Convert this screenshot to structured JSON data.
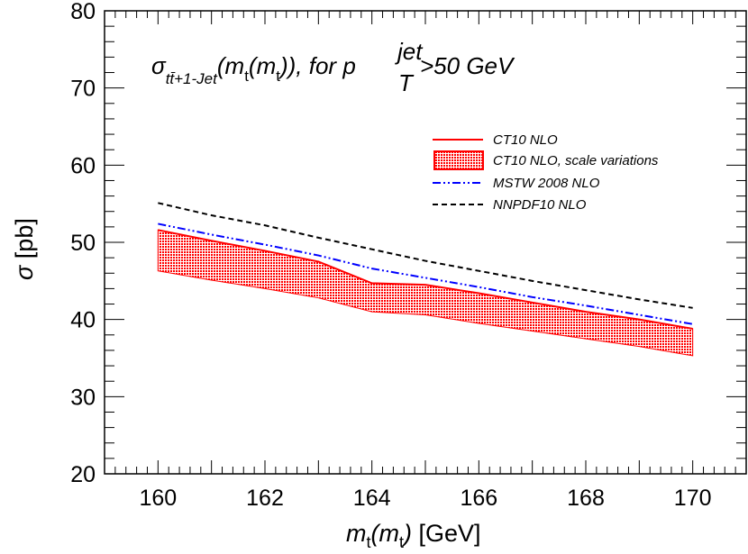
{
  "chart_data": {
    "type": "line",
    "title": {
      "sigma": "σ",
      "sub_main": "tt̄+1-Jet",
      "lparen": "(m",
      "sub_t1": "t",
      "mid": "(m",
      "sub_t2": "t",
      "rest": ")), for p",
      "sup_jet": "jet",
      "sub_T": "T",
      "cut": ">50 GeV"
    },
    "xlabel": {
      "m": "m",
      "sub1": "t",
      "paren": "(m",
      "sub2": "t",
      "close": ")",
      "unit": " [GeV]"
    },
    "ylabel": {
      "sigma": "σ",
      "unit": " [pb]"
    },
    "xlim": [
      159,
      171
    ],
    "ylim": [
      20,
      80
    ],
    "xticks": [
      "160",
      "162",
      "164",
      "166",
      "168",
      "170"
    ],
    "yticks": [
      "20",
      "30",
      "40",
      "50",
      "60",
      "70",
      "80"
    ],
    "x": [
      160,
      161,
      162,
      163,
      164,
      165,
      166,
      167,
      168,
      169,
      170
    ],
    "series": [
      {
        "name": "CT10 NLO",
        "style": "solid",
        "color": "#ff0000",
        "values": [
          51.6,
          50.2,
          48.9,
          47.5,
          44.7,
          44.5,
          43.4,
          42.2,
          41.0,
          40.0,
          38.8
        ]
      },
      {
        "name": "CT10 NLO, scale variations",
        "style": "band",
        "color": "#ff0000",
        "upper": [
          51.6,
          50.2,
          48.9,
          47.5,
          44.7,
          44.5,
          43.4,
          42.2,
          41.0,
          40.0,
          38.8
        ],
        "lower": [
          46.3,
          45.1,
          44.0,
          42.8,
          41.0,
          40.6,
          39.5,
          38.5,
          37.5,
          36.5,
          35.3
        ]
      },
      {
        "name": "MSTW 2008 NLO",
        "style": "dashdotdot",
        "color": "#0000ff",
        "values": [
          52.4,
          51.0,
          49.7,
          48.3,
          46.6,
          45.4,
          44.2,
          42.9,
          41.8,
          40.6,
          39.4
        ]
      },
      {
        "name": "NNPDF10 NLO",
        "style": "dashed",
        "color": "#000000",
        "values": [
          55.1,
          53.5,
          52.2,
          50.6,
          49.1,
          47.6,
          46.3,
          45.0,
          43.8,
          42.6,
          41.5
        ]
      }
    ],
    "legend_position": "top-right",
    "grid": false
  }
}
